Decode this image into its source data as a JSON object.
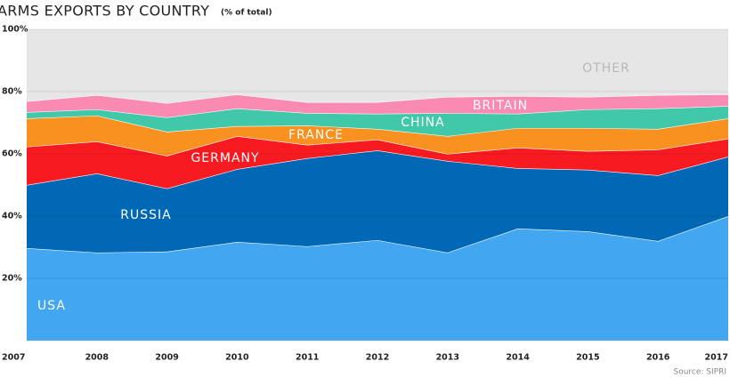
{
  "chart_data": {
    "type": "stacked-area",
    "title": "ARMS EXPORTS BY COUNTRY",
    "subtitle": "(% of total)",
    "source": "Source: SIPRI",
    "x": [
      2007,
      2008,
      2009,
      2010,
      2011,
      2012,
      2013,
      2014,
      2015,
      2016,
      2017
    ],
    "xlim": [
      2007,
      2017
    ],
    "ylim": [
      0,
      100
    ],
    "yticks": [
      {
        "value": 20,
        "label": "20%"
      },
      {
        "value": 40,
        "label": "40%"
      },
      {
        "value": 60,
        "label": "60%"
      },
      {
        "value": 80,
        "label": "80%"
      },
      {
        "value": 100,
        "label": "100%"
      }
    ],
    "grid": true,
    "series": [
      {
        "name": "USA",
        "color": "#42a6f0",
        "values": [
          29.7,
          28.3,
          28.6,
          31.7,
          30.3,
          32.3,
          28.3,
          36.0,
          35.1,
          32.0,
          40.0
        ]
      },
      {
        "name": "RUSSIA",
        "color": "#0068b5",
        "values": [
          20.3,
          25.4,
          20.3,
          23.4,
          28.3,
          28.8,
          29.4,
          19.4,
          19.8,
          21.1,
          19.1
        ]
      },
      {
        "name": "GERMANY",
        "color": "#f71a21",
        "values": [
          12.3,
          10.3,
          10.5,
          10.6,
          4.3,
          3.5,
          2.3,
          6.6,
          6.0,
          8.3,
          5.8
        ]
      },
      {
        "name": "FRANCE",
        "color": "#f8911f",
        "values": [
          9.1,
          8.3,
          7.7,
          3.2,
          6.2,
          3.4,
          5.7,
          6.3,
          7.4,
          6.6,
          6.5
        ]
      },
      {
        "name": "CHINA",
        "color": "#41c8a8",
        "values": [
          2.0,
          2.0,
          4.6,
          5.7,
          4.0,
          4.9,
          7.4,
          4.6,
          6.0,
          6.6,
          4.0
        ]
      },
      {
        "name": "BRITAIN",
        "color": "#f98ab2",
        "values": [
          3.5,
          4.6,
          4.6,
          4.5,
          3.5,
          3.7,
          5.2,
          5.7,
          4.0,
          4.3,
          3.7
        ]
      },
      {
        "name": "OTHER",
        "color": "#e6e6e6",
        "values": [
          23.1,
          21.1,
          23.7,
          20.9,
          23.4,
          23.4,
          21.7,
          21.4,
          21.7,
          21.1,
          20.9
        ]
      }
    ]
  }
}
